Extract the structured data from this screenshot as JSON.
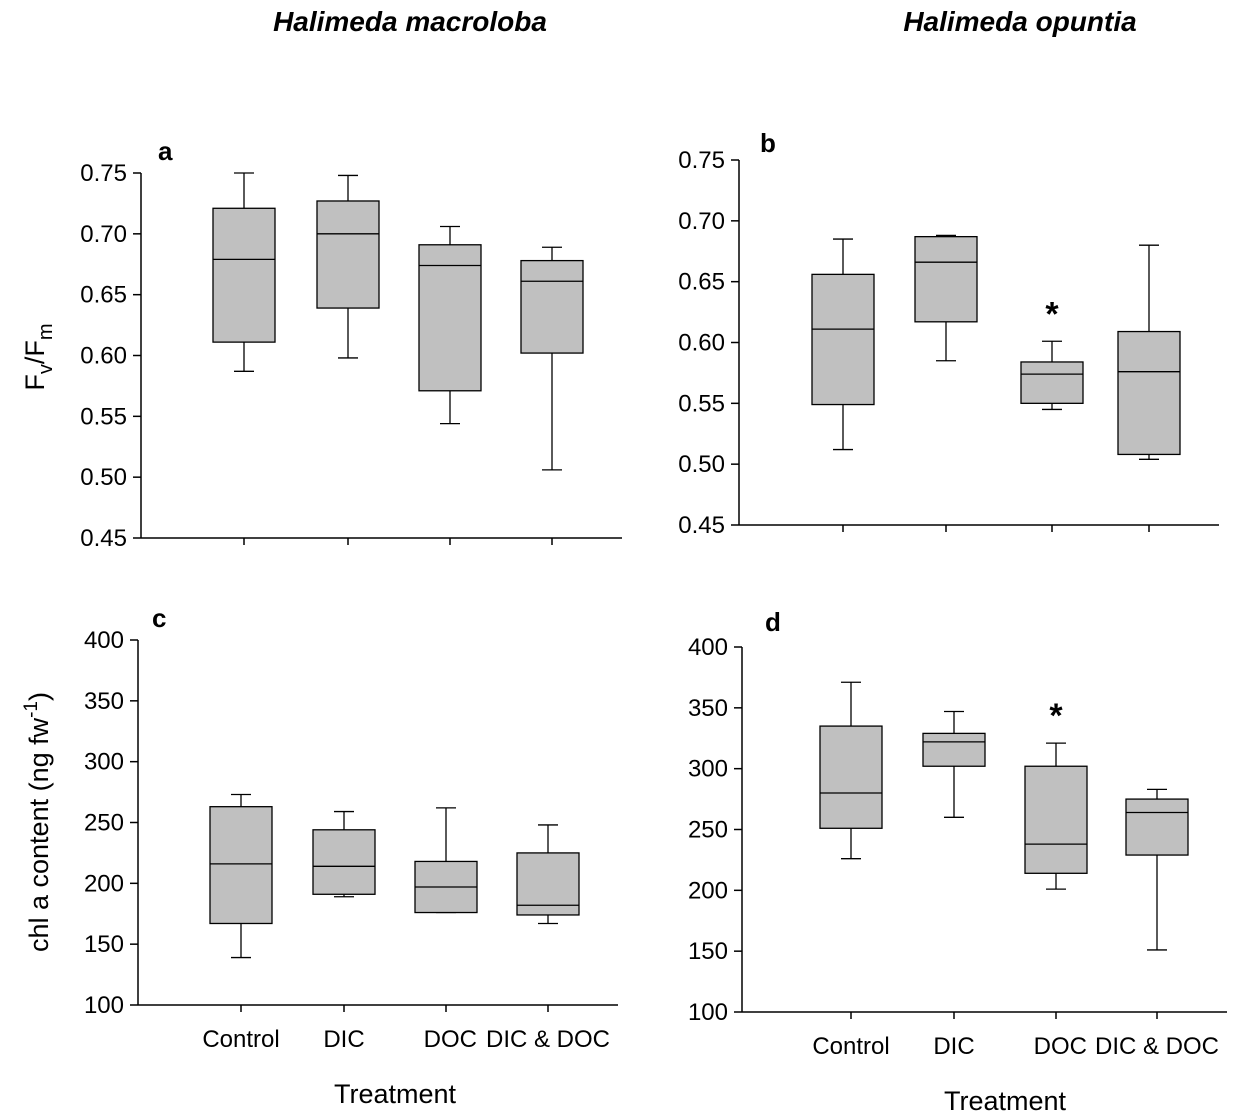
{
  "column_titles": [
    "Halimeda macroloba",
    "Halimeda opuntia"
  ],
  "colors": {
    "box_fill": "#c0c0c0",
    "stroke": "#000000"
  },
  "chart_data": [
    {
      "panel": "a",
      "type": "box",
      "categories": [
        "Control",
        "DIC",
        "DOC",
        "DIC & DOC"
      ],
      "ylabel": "Fv/Fm",
      "ylim": [
        0.45,
        0.75
      ],
      "yticks": [
        "0.45",
        "0.50",
        "0.55",
        "0.60",
        "0.65",
        "0.70",
        "0.75"
      ],
      "show_xtick_labels": false,
      "xlabel": "",
      "boxes": [
        {
          "min": 0.587,
          "q1": 0.611,
          "median": 0.679,
          "q3": 0.721,
          "max": 0.75
        },
        {
          "min": 0.598,
          "q1": 0.639,
          "median": 0.7,
          "q3": 0.727,
          "max": 0.748
        },
        {
          "min": 0.544,
          "q1": 0.571,
          "median": 0.674,
          "q3": 0.691,
          "max": 0.706
        },
        {
          "min": 0.506,
          "q1": 0.602,
          "median": 0.661,
          "q3": 0.678,
          "max": 0.689
        }
      ],
      "significant": []
    },
    {
      "panel": "b",
      "type": "box",
      "categories": [
        "Control",
        "DIC",
        "DOC",
        "DIC & DOC"
      ],
      "ylabel": "",
      "ylim": [
        0.45,
        0.75
      ],
      "yticks": [
        "0.45",
        "0.50",
        "0.55",
        "0.60",
        "0.65",
        "0.70",
        "0.75"
      ],
      "show_xtick_labels": false,
      "xlabel": "",
      "boxes": [
        {
          "min": 0.512,
          "q1": 0.549,
          "median": 0.611,
          "q3": 0.656,
          "max": 0.685
        },
        {
          "min": 0.585,
          "q1": 0.617,
          "median": 0.666,
          "q3": 0.687,
          "max": 0.688
        },
        {
          "min": 0.545,
          "q1": 0.55,
          "median": 0.574,
          "q3": 0.584,
          "max": 0.601
        },
        {
          "min": 0.504,
          "q1": 0.508,
          "median": 0.576,
          "q3": 0.609,
          "max": 0.68
        }
      ],
      "significant": [
        2
      ]
    },
    {
      "panel": "c",
      "type": "box",
      "categories": [
        "Control",
        "DIC",
        "DOC",
        "DIC & DOC"
      ],
      "ylabel": "chl a content (ng fw-1)",
      "ylim": [
        100,
        400
      ],
      "yticks": [
        "100",
        "150",
        "200",
        "250",
        "300",
        "350",
        "400"
      ],
      "show_xtick_labels": true,
      "xlabel": "Treatment",
      "boxes": [
        {
          "min": 139,
          "q1": 167,
          "median": 216,
          "q3": 263,
          "max": 273
        },
        {
          "min": 189,
          "q1": 191,
          "median": 214,
          "q3": 244,
          "max": 259
        },
        {
          "min": 176,
          "q1": 176,
          "median": 197,
          "q3": 218,
          "max": 262
        },
        {
          "min": 167,
          "q1": 174,
          "median": 182,
          "q3": 225,
          "max": 248
        }
      ],
      "significant": []
    },
    {
      "panel": "d",
      "type": "box",
      "categories": [
        "Control",
        "DIC",
        "DOC",
        "DIC & DOC"
      ],
      "ylabel": "",
      "ylim": [
        100,
        400
      ],
      "yticks": [
        "100",
        "150",
        "200",
        "250",
        "300",
        "350",
        "400"
      ],
      "show_xtick_labels": true,
      "xlabel": "Treatment",
      "boxes": [
        {
          "min": 226,
          "q1": 251,
          "median": 280,
          "q3": 335,
          "max": 371
        },
        {
          "min": 260,
          "q1": 302,
          "median": 322,
          "q3": 329,
          "max": 347
        },
        {
          "min": 201,
          "q1": 214,
          "median": 238,
          "q3": 302,
          "max": 321
        },
        {
          "min": 151,
          "q1": 229,
          "median": 264,
          "q3": 275,
          "max": 283
        }
      ],
      "significant": [
        2
      ]
    }
  ],
  "ylabel_a_parts": {
    "main": "F",
    "sub1": "v",
    "mid": "/F",
    "sub2": "m"
  },
  "ylabel_c_parts": {
    "main": "chl a content (ng fw",
    "sup": "-1",
    "end": ")"
  },
  "significance_marker": "*"
}
